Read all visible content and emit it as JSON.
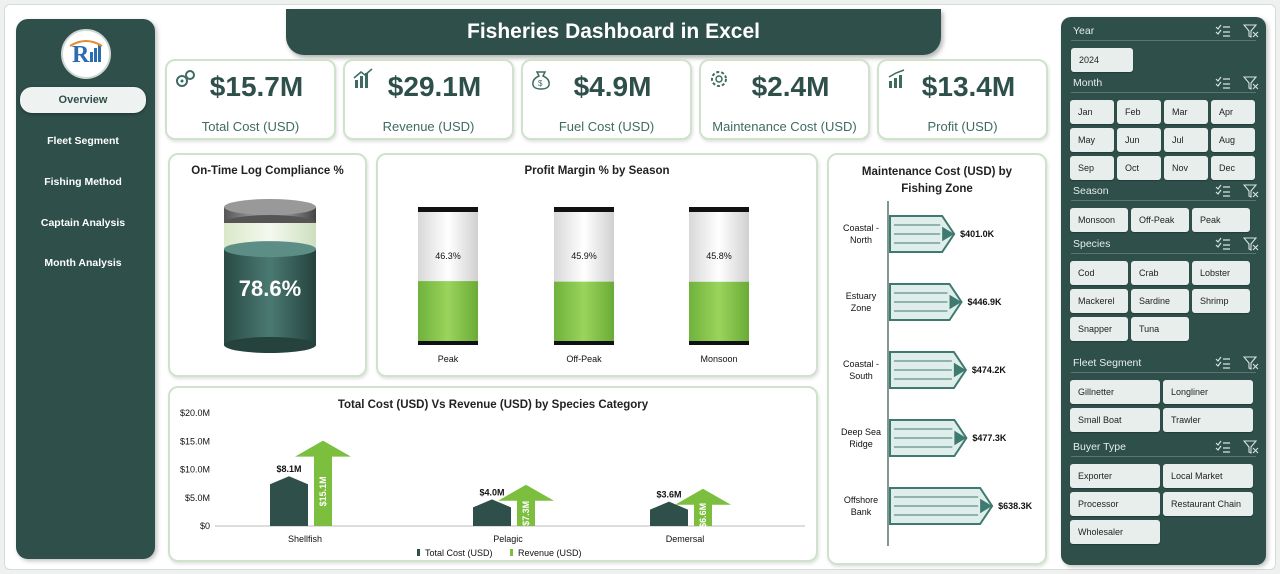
{
  "header": {
    "title": "Fisheries Dashboard in Excel"
  },
  "sidebar": {
    "logo": "company-logo",
    "items": [
      {
        "label": "Overview",
        "active": true
      },
      {
        "label": "Fleet Segment"
      },
      {
        "label": "Fishing Method"
      },
      {
        "label": "Captain  Analysis"
      },
      {
        "label": "Month Analysis"
      }
    ]
  },
  "kpis": [
    {
      "value": "$15.7M",
      "label": "Total Cost (USD)",
      "icon": "gears-icon"
    },
    {
      "value": "$29.1M",
      "label": "Revenue (USD)",
      "icon": "bar-chart-icon"
    },
    {
      "value": "$4.9M",
      "label": "Fuel Cost (USD)",
      "icon": "money-bag-icon"
    },
    {
      "value": "$2.4M",
      "label": "Maintenance Cost (USD)",
      "icon": "settings-icon"
    },
    {
      "value": "$13.4M",
      "label": "Profit (USD)",
      "icon": "growth-icon"
    }
  ],
  "compliance": {
    "title": "On-Time Log Compliance %",
    "value": "78.6%",
    "level": 0.786
  },
  "profit_margin": {
    "title": "Profit Margin % by Season",
    "items": [
      {
        "season": "Peak",
        "label": "46.3%",
        "value": 46.3
      },
      {
        "season": "Off-Peak",
        "label": "45.9%",
        "value": 45.9
      },
      {
        "season": "Monsoon",
        "label": "45.8%",
        "value": 45.8
      }
    ]
  },
  "maintenance": {
    "title_line1": "Maintenance Cost (USD) by",
    "title_line2": "Fishing Zone",
    "zones": [
      {
        "line1": "Coastal -",
        "line2": "North",
        "label": "$401.0K",
        "value": 401.0
      },
      {
        "line1": "Estuary",
        "line2": "Zone",
        "label": "$446.9K",
        "value": 446.9
      },
      {
        "line1": "Coastal -",
        "line2": "South",
        "label": "$474.2K",
        "value": 474.2
      },
      {
        "line1": "Deep Sea",
        "line2": "Ridge",
        "label": "$477.3K",
        "value": 477.3
      },
      {
        "line1": "Offshore",
        "line2": "Bank",
        "label": "$638.3K",
        "value": 638.3
      }
    ]
  },
  "cost_revenue": {
    "title": "Total Cost (USD) Vs Revenue (USD) by Species Category",
    "yticks": [
      "$20.0M",
      "$15.0M",
      "$10.0M",
      "$5.0M",
      "$0"
    ],
    "legend": [
      "Total Cost (USD)",
      "Revenue (USD)"
    ],
    "colors": {
      "cost": "#2e4f4a",
      "revenue": "#7cbf3e"
    }
  },
  "chart_data": [
    {
      "type": "bar",
      "title": "Profit Margin % by Season",
      "categories": [
        "Peak",
        "Off-Peak",
        "Monsoon"
      ],
      "values": [
        46.3,
        45.9,
        45.8
      ]
    },
    {
      "type": "bar",
      "title": "Maintenance Cost (USD) by Fishing Zone",
      "categories": [
        "Coastal - North",
        "Estuary Zone",
        "Coastal - South",
        "Deep Sea Ridge",
        "Offshore Bank"
      ],
      "values": [
        401.0,
        446.9,
        474.2,
        477.3,
        638.3
      ]
    },
    {
      "type": "bar",
      "title": "Total Cost (USD) Vs Revenue (USD) by Species Category",
      "categories": [
        "Shellfish",
        "Pelagic",
        "Demersal"
      ],
      "series": [
        {
          "name": "Total Cost (USD)",
          "values": [
            8.1,
            4.0,
            3.6
          ],
          "labels": [
            "$8.1M",
            "$4.0M",
            "$3.6M"
          ]
        },
        {
          "name": "Revenue (USD)",
          "values": [
            15.1,
            7.3,
            6.6
          ],
          "labels": [
            "$15.1M",
            "$7.3M",
            "$6.6M"
          ]
        }
      ],
      "ylim": [
        0,
        20
      ]
    }
  ],
  "filters": {
    "year": {
      "label": "Year",
      "options": [
        "2024"
      ]
    },
    "month": {
      "label": "Month",
      "options": [
        "Jan",
        "Feb",
        "Mar",
        "Apr",
        "May",
        "Jun",
        "Jul",
        "Aug",
        "Sep",
        "Oct",
        "Nov",
        "Dec"
      ]
    },
    "season": {
      "label": "Season",
      "options": [
        "Monsoon",
        "Off-Peak",
        "Peak"
      ]
    },
    "species": {
      "label": "Species",
      "options": [
        "Cod",
        "Crab",
        "Lobster",
        "Mackerel",
        "Sardine",
        "Shrimp",
        "Snapper",
        "Tuna"
      ]
    },
    "fleet": {
      "label": "Fleet Segment",
      "options": [
        "Gillnetter",
        "Longliner",
        "Small Boat",
        "Trawler"
      ]
    },
    "buyer": {
      "label": "Buyer Type",
      "options": [
        "Exporter",
        "Local Market",
        "Processor",
        "Restaurant Chain",
        "Wholesaler"
      ]
    }
  }
}
